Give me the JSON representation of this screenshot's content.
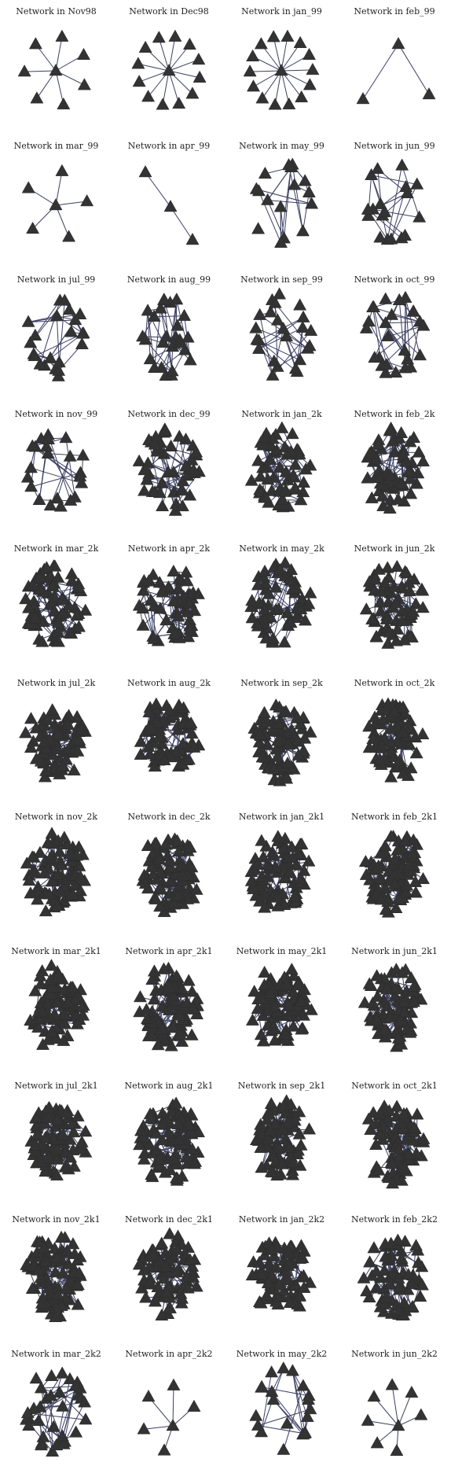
{
  "colors": {
    "node": "#333333",
    "edge": "#3b3f63",
    "title": "#222222",
    "background": "#ffffff"
  },
  "node_shape": "triangle-icon",
  "panels": [
    {
      "title": "Network in Nov98",
      "nodes": 8,
      "layout": "star",
      "density": "sparse"
    },
    {
      "title": "Network in Dec98",
      "nodes": 13,
      "layout": "star",
      "density": "sparse"
    },
    {
      "title": "Network in jan_99",
      "nodes": 15,
      "layout": "star",
      "density": "sparse"
    },
    {
      "title": "Network in feb_99",
      "nodes": 3,
      "layout": "path-3",
      "density": "sparse"
    },
    {
      "title": "Network in mar_99",
      "nodes": 6,
      "layout": "star",
      "density": "sparse"
    },
    {
      "title": "Network in apr_99",
      "nodes": 3,
      "layout": "path-line",
      "density": "sparse"
    },
    {
      "title": "Network in may_99",
      "nodes": 16,
      "layout": "ring",
      "density": "sparse"
    },
    {
      "title": "Network in jun_99",
      "nodes": 18,
      "layout": "ring",
      "density": "sparse"
    },
    {
      "title": "Network in jul_99",
      "nodes": 22,
      "layout": "ring",
      "density": "medium"
    },
    {
      "title": "Network in aug_99",
      "nodes": 26,
      "layout": "ring",
      "density": "medium"
    },
    {
      "title": "Network in sep_99",
      "nodes": 24,
      "layout": "ring",
      "density": "medium"
    },
    {
      "title": "Network in oct_99",
      "nodes": 26,
      "layout": "ring",
      "density": "medium"
    },
    {
      "title": "Network in nov_99",
      "nodes": 22,
      "layout": "ring",
      "density": "medium"
    },
    {
      "title": "Network in dec_99",
      "nodes": 45,
      "layout": "ring",
      "density": "dense"
    },
    {
      "title": "Network in jan_2k",
      "nodes": 60,
      "layout": "ring",
      "density": "dense"
    },
    {
      "title": "Network in feb_2k",
      "nodes": 60,
      "layout": "ring",
      "density": "dense"
    },
    {
      "title": "Network in mar_2k",
      "nodes": 70,
      "layout": "ring",
      "density": "dense"
    },
    {
      "title": "Network in apr_2k",
      "nodes": 55,
      "layout": "ring",
      "density": "dense"
    },
    {
      "title": "Network in may_2k",
      "nodes": 60,
      "layout": "ring",
      "density": "dense"
    },
    {
      "title": "Network in jun_2k",
      "nodes": 60,
      "layout": "ring",
      "density": "dense"
    },
    {
      "title": "Network in jul_2k",
      "nodes": 75,
      "layout": "ring",
      "density": "full"
    },
    {
      "title": "Network in aug_2k",
      "nodes": 80,
      "layout": "ring",
      "density": "full"
    },
    {
      "title": "Network in sep_2k",
      "nodes": 80,
      "layout": "ring",
      "density": "full"
    },
    {
      "title": "Network in oct_2k",
      "nodes": 75,
      "layout": "ring",
      "density": "full"
    },
    {
      "title": "Network in nov_2k",
      "nodes": 85,
      "layout": "ring",
      "density": "full"
    },
    {
      "title": "Network in dec_2k",
      "nodes": 85,
      "layout": "ring",
      "density": "full"
    },
    {
      "title": "Network in jan_2k1",
      "nodes": 85,
      "layout": "ring",
      "density": "full"
    },
    {
      "title": "Network in feb_2k1",
      "nodes": 85,
      "layout": "ring",
      "density": "full"
    },
    {
      "title": "Network in mar_2k1",
      "nodes": 90,
      "layout": "ring",
      "density": "full"
    },
    {
      "title": "Network in apr_2k1",
      "nodes": 90,
      "layout": "ring",
      "density": "full"
    },
    {
      "title": "Network in may_2k1",
      "nodes": 90,
      "layout": "ring",
      "density": "full"
    },
    {
      "title": "Network in jun_2k1",
      "nodes": 85,
      "layout": "ring",
      "density": "full"
    },
    {
      "title": "Network in jul_2k1",
      "nodes": 85,
      "layout": "ring",
      "density": "full"
    },
    {
      "title": "Network in aug_2k1",
      "nodes": 85,
      "layout": "ring",
      "density": "full"
    },
    {
      "title": "Network in sep_2k1",
      "nodes": 80,
      "layout": "ring",
      "density": "full"
    },
    {
      "title": "Network in oct_2k1",
      "nodes": 80,
      "layout": "ring",
      "density": "full"
    },
    {
      "title": "Network in nov_2k1",
      "nodes": 85,
      "layout": "ring",
      "density": "full"
    },
    {
      "title": "Network in dec_2k1",
      "nodes": 80,
      "layout": "ring",
      "density": "full"
    },
    {
      "title": "Network in jan_2k2",
      "nodes": 80,
      "layout": "ring",
      "density": "full"
    },
    {
      "title": "Network in feb_2k2",
      "nodes": 65,
      "layout": "ring",
      "density": "dense"
    },
    {
      "title": "Network in mar_2k2",
      "nodes": 34,
      "layout": "ring",
      "density": "medium"
    },
    {
      "title": "Network in apr_2k2",
      "nodes": 6,
      "layout": "small-tree",
      "density": "sparse"
    },
    {
      "title": "Network in may_2k2",
      "nodes": 20,
      "layout": "ring",
      "density": "sparse"
    },
    {
      "title": "Network in jun_2k2",
      "nodes": 8,
      "layout": "small-tree",
      "density": "sparse"
    }
  ]
}
